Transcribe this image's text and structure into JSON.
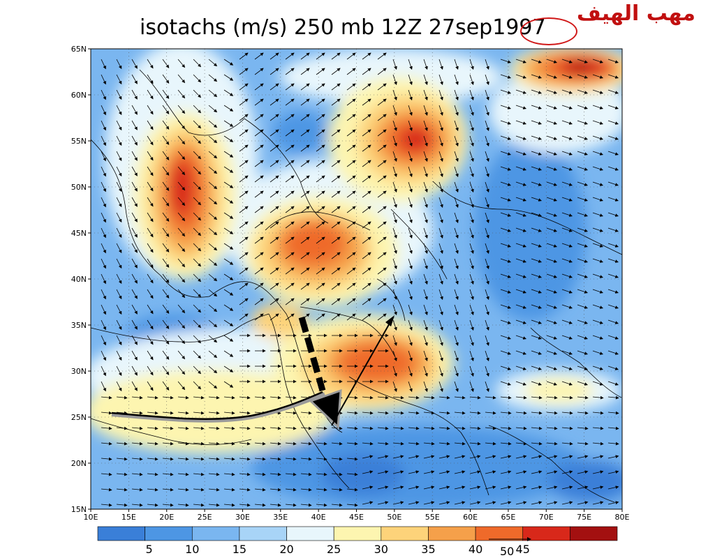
{
  "title": "isotachs (m/s) 250 mb 12Z 27sep1997",
  "annotation_text": "مهب الهيف",
  "annotation_circle_target": "1997",
  "vector_reference_label": "50",
  "map": {
    "region": {
      "lon": [
        10,
        80
      ],
      "lat": [
        15,
        65
      ]
    },
    "lon_labels": [
      "10E",
      "15E",
      "20E",
      "25E",
      "30E",
      "35E",
      "40E",
      "45E",
      "50E",
      "55E",
      "60E",
      "65E",
      "70E",
      "75E",
      "80E"
    ],
    "lat_labels": [
      "65N",
      "60N",
      "55N",
      "50N",
      "45N",
      "40N",
      "35N",
      "30N",
      "25N",
      "20N",
      "15N"
    ],
    "grid": "dotted",
    "coastlines": true
  },
  "colorbar": {
    "labels": [
      "5",
      "10",
      "15",
      "20",
      "25",
      "30",
      "35",
      "40",
      "45"
    ],
    "colors": [
      "#3a7fd8",
      "#4d96e4",
      "#7ab6f0",
      "#a8d4f7",
      "#e8f6fc",
      "#fdf5b0",
      "#fdd37a",
      "#f5a04a",
      "#ef6a2a",
      "#d8281a",
      "#a31010"
    ]
  },
  "annotations": [
    {
      "name": "dashed-arrow",
      "description_color": "#000000"
    },
    {
      "name": "curved-flow-arrow",
      "color": "#000000"
    },
    {
      "name": "ne-arrow",
      "color": "#000000"
    }
  ]
}
